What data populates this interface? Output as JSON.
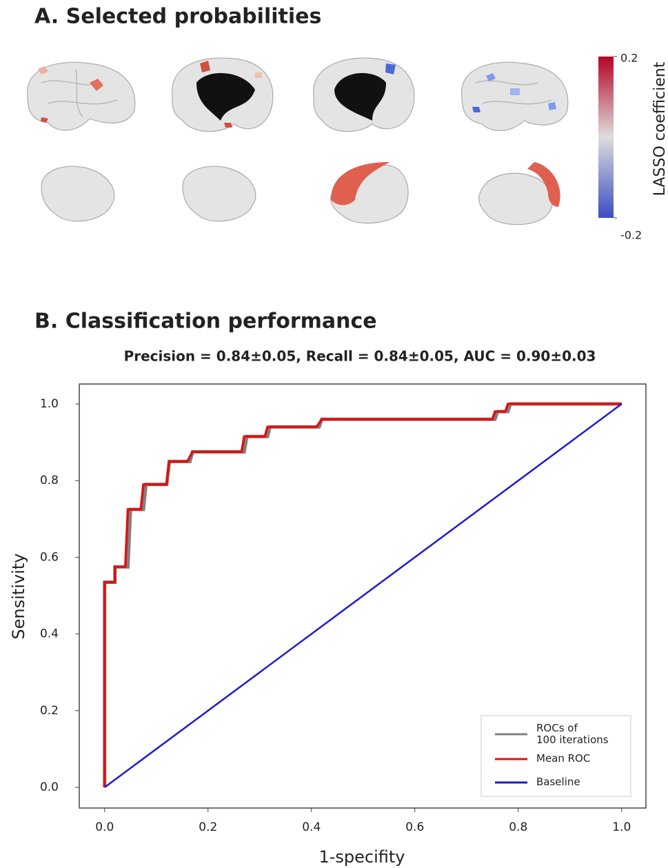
{
  "chart_data": [
    {
      "type": "colorbar",
      "title": "A. Selected probabilities",
      "label": "LASSO coefficient",
      "lim": [
        -0.2,
        0.2
      ],
      "ticks": [
        0.2,
        -0.2
      ],
      "colors": [
        "#3b4cc0",
        "#dddddd",
        "#b40426"
      ]
    },
    {
      "type": "line",
      "section_title": "B. Classification performance",
      "title": "Precision = 0.84±0.05, Recall = 0.84±0.05, AUC = 0.90±0.03",
      "xlabel": "1-specifity",
      "ylabel": "Sensitivity",
      "xlim": [
        -0.049,
        1.047
      ],
      "ylim": [
        -0.054,
        1.052
      ],
      "xticks": [
        {
          "value": 0,
          "label": "0.0"
        },
        0.2,
        0.4,
        0.6,
        0.8,
        {
          "value": 1,
          "label": "1.0"
        }
      ],
      "yticks": [
        {
          "value": 0,
          "label": "0.0"
        },
        0.2,
        0.4,
        0.6,
        0.8,
        {
          "value": 1,
          "label": "1.0"
        }
      ],
      "legend": "lower right",
      "series": [
        {
          "name": "ROCs of\n100 iterations",
          "color": "#808080",
          "x": [
            0,
            0,
            0.02,
            0.02,
            0.045,
            0.05,
            0.075,
            0.08,
            0.12,
            0.125,
            0.165,
            0.17,
            0.27,
            0.275,
            0.315,
            0.32,
            0.415,
            0.42,
            0.755,
            0.76,
            0.78,
            0.785,
            1.0
          ],
          "values": [
            0,
            0.535,
            0.535,
            0.575,
            0.575,
            0.725,
            0.725,
            0.79,
            0.79,
            0.85,
            0.85,
            0.875,
            0.875,
            0.915,
            0.915,
            0.94,
            0.94,
            0.96,
            0.96,
            0.98,
            0.98,
            1.0,
            1.0
          ]
        },
        {
          "name": "Mean ROC",
          "color": "#e01010",
          "x": [
            0,
            0,
            0.02,
            0.02,
            0.04,
            0.045,
            0.07,
            0.075,
            0.12,
            0.125,
            0.16,
            0.17,
            0.265,
            0.27,
            0.31,
            0.315,
            0.41,
            0.42,
            0.75,
            0.755,
            0.775,
            0.78,
            1.0
          ],
          "values": [
            0,
            0.535,
            0.535,
            0.575,
            0.575,
            0.725,
            0.725,
            0.79,
            0.79,
            0.85,
            0.85,
            0.875,
            0.875,
            0.915,
            0.915,
            0.94,
            0.94,
            0.96,
            0.96,
            0.98,
            0.98,
            1.0,
            1.0
          ]
        },
        {
          "name": "Baseline",
          "color": "#1a1ad0",
          "x": [
            0,
            1
          ],
          "values": [
            0,
            1
          ]
        }
      ]
    }
  ]
}
